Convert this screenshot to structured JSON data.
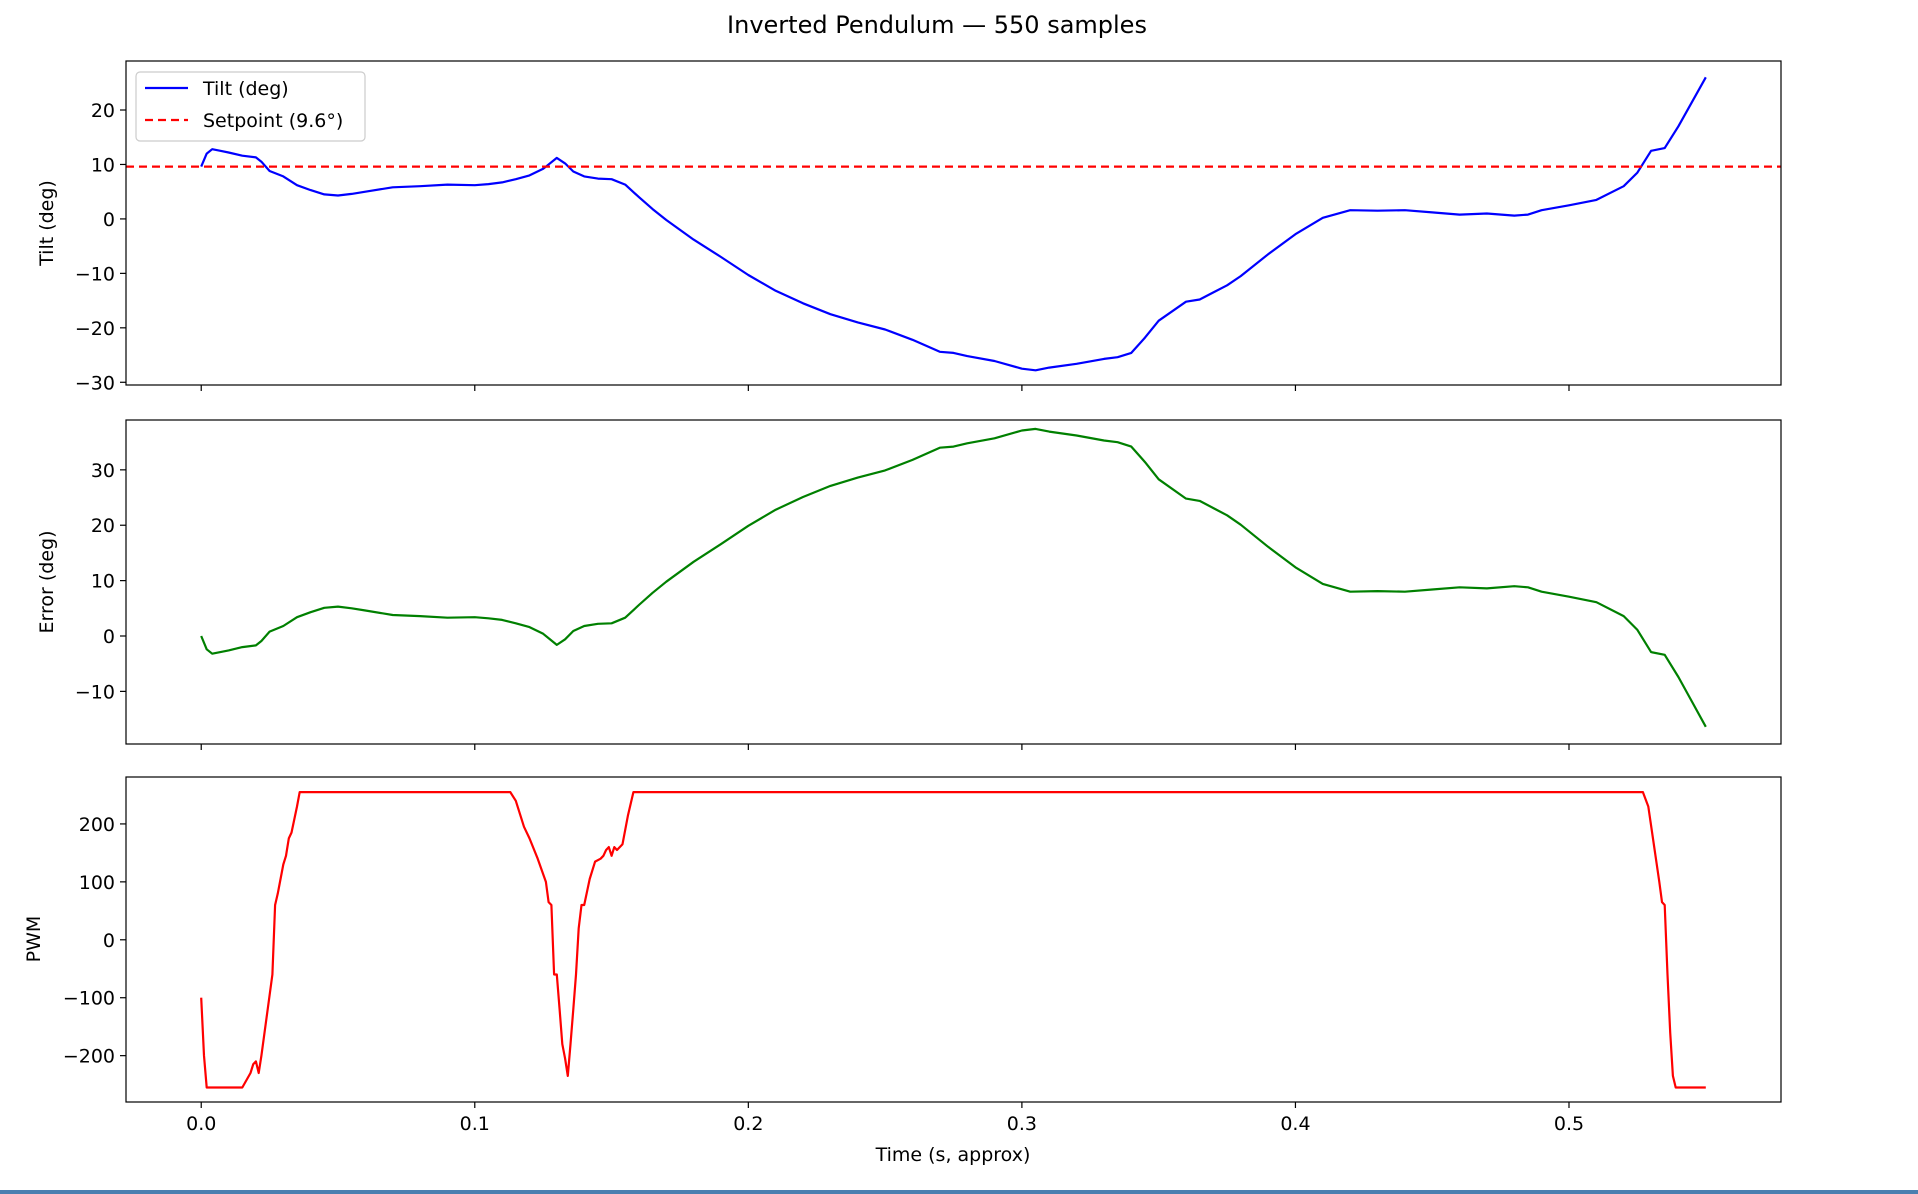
{
  "figure_title": "Inverted Pendulum — 550 samples",
  "chart_data": [
    {
      "type": "line",
      "ylabel": "Tilt (deg)",
      "xlabel": "",
      "xlim": [
        -0.0275,
        0.5775
      ],
      "ylim": [
        -30.5,
        29.0
      ],
      "xticks": [
        0.0,
        0.1,
        0.2,
        0.3,
        0.4,
        0.5
      ],
      "yticks": [
        -30,
        -20,
        -10,
        0,
        10,
        20
      ],
      "grid": false,
      "legend": "top-left",
      "series": [
        {
          "name": "Tilt (deg)",
          "color": "#0000ff",
          "style": "solid",
          "x": [
            0.0,
            0.002,
            0.004,
            0.007,
            0.01,
            0.015,
            0.02,
            0.022,
            0.025,
            0.03,
            0.035,
            0.04,
            0.045,
            0.05,
            0.055,
            0.06,
            0.07,
            0.08,
            0.09,
            0.1,
            0.105,
            0.11,
            0.115,
            0.12,
            0.125,
            0.13,
            0.133,
            0.136,
            0.14,
            0.145,
            0.15,
            0.155,
            0.16,
            0.165,
            0.17,
            0.18,
            0.19,
            0.2,
            0.21,
            0.22,
            0.23,
            0.24,
            0.25,
            0.26,
            0.27,
            0.275,
            0.28,
            0.29,
            0.3,
            0.305,
            0.31,
            0.32,
            0.33,
            0.335,
            0.34,
            0.345,
            0.35,
            0.36,
            0.365,
            0.37,
            0.375,
            0.38,
            0.39,
            0.4,
            0.41,
            0.42,
            0.43,
            0.44,
            0.45,
            0.46,
            0.47,
            0.48,
            0.485,
            0.49,
            0.5,
            0.51,
            0.52,
            0.525,
            0.53,
            0.535,
            0.54,
            0.545,
            0.55
          ],
          "y": [
            9.6,
            12.0,
            12.8,
            12.5,
            12.2,
            11.6,
            11.3,
            10.5,
            8.8,
            7.8,
            6.2,
            5.3,
            4.5,
            4.3,
            4.6,
            5.0,
            5.8,
            6.0,
            6.3,
            6.2,
            6.4,
            6.7,
            7.3,
            8.0,
            9.2,
            11.2,
            10.2,
            8.7,
            7.8,
            7.4,
            7.3,
            6.3,
            4.0,
            1.8,
            -0.2,
            -3.8,
            -7.0,
            -10.3,
            -13.2,
            -15.5,
            -17.5,
            -19.0,
            -20.3,
            -22.2,
            -24.4,
            -24.6,
            -25.2,
            -26.1,
            -27.5,
            -27.8,
            -27.3,
            -26.6,
            -25.7,
            -25.4,
            -24.6,
            -21.8,
            -18.7,
            -15.2,
            -14.8,
            -13.5,
            -12.2,
            -10.5,
            -6.5,
            -2.8,
            0.2,
            1.6,
            1.5,
            1.6,
            1.2,
            0.8,
            1.0,
            0.6,
            0.8,
            1.6,
            2.5,
            3.5,
            6.0,
            8.5,
            12.5,
            13.0,
            17.0,
            21.5,
            26.0
          ]
        },
        {
          "name": "Setpoint (9.6°)",
          "color": "#ff0000",
          "style": "dashed",
          "x": [
            -0.0275,
            0.5775
          ],
          "y": [
            9.6,
            9.6
          ]
        }
      ]
    },
    {
      "type": "line",
      "ylabel": "Error (deg)",
      "xlabel": "",
      "xlim": [
        -0.0275,
        0.5775
      ],
      "ylim": [
        -19.5,
        39.0
      ],
      "xticks": [
        0.0,
        0.1,
        0.2,
        0.3,
        0.4,
        0.5
      ],
      "yticks": [
        -10,
        0,
        10,
        20,
        30
      ],
      "grid": false,
      "series": [
        {
          "color": "#008000",
          "style": "solid",
          "x": [
            0.0,
            0.002,
            0.004,
            0.007,
            0.01,
            0.015,
            0.02,
            0.022,
            0.025,
            0.03,
            0.035,
            0.04,
            0.045,
            0.05,
            0.055,
            0.06,
            0.07,
            0.08,
            0.09,
            0.1,
            0.105,
            0.11,
            0.115,
            0.12,
            0.125,
            0.13,
            0.133,
            0.136,
            0.14,
            0.145,
            0.15,
            0.155,
            0.16,
            0.165,
            0.17,
            0.18,
            0.19,
            0.2,
            0.21,
            0.22,
            0.23,
            0.24,
            0.25,
            0.26,
            0.27,
            0.275,
            0.28,
            0.29,
            0.3,
            0.305,
            0.31,
            0.32,
            0.33,
            0.335,
            0.34,
            0.345,
            0.35,
            0.36,
            0.365,
            0.37,
            0.375,
            0.38,
            0.39,
            0.4,
            0.41,
            0.42,
            0.43,
            0.44,
            0.45,
            0.46,
            0.47,
            0.48,
            0.485,
            0.49,
            0.5,
            0.51,
            0.52,
            0.525,
            0.53,
            0.535,
            0.54,
            0.545,
            0.55
          ],
          "y": [
            0.0,
            -2.4,
            -3.2,
            -2.9,
            -2.6,
            -2.0,
            -1.7,
            -0.9,
            0.8,
            1.8,
            3.4,
            4.3,
            5.1,
            5.3,
            5.0,
            4.6,
            3.8,
            3.6,
            3.3,
            3.4,
            3.2,
            2.9,
            2.3,
            1.6,
            0.4,
            -1.6,
            -0.6,
            0.9,
            1.8,
            2.2,
            2.3,
            3.3,
            5.6,
            7.8,
            9.8,
            13.4,
            16.6,
            19.9,
            22.8,
            25.1,
            27.1,
            28.6,
            29.9,
            31.8,
            34.0,
            34.2,
            34.8,
            35.7,
            37.1,
            37.4,
            36.9,
            36.2,
            35.3,
            35.0,
            34.2,
            31.4,
            28.3,
            24.8,
            24.4,
            23.1,
            21.8,
            20.1,
            16.1,
            12.4,
            9.4,
            8.0,
            8.1,
            8.0,
            8.4,
            8.8,
            8.6,
            9.0,
            8.8,
            8.0,
            7.1,
            6.1,
            3.6,
            1.1,
            -2.9,
            -3.4,
            -7.4,
            -11.9,
            -16.4
          ]
        }
      ]
    },
    {
      "type": "line",
      "ylabel": "PWM",
      "xlabel": "Time (s, approx)",
      "xlim": [
        -0.0275,
        0.5775
      ],
      "ylim": [
        -280,
        281
      ],
      "xticks": [
        0.0,
        0.1,
        0.2,
        0.3,
        0.4,
        0.5
      ],
      "yticks": [
        -200,
        -100,
        0,
        100,
        200
      ],
      "grid": false,
      "series": [
        {
          "color": "#ff0000",
          "style": "solid",
          "x": [
            0.0,
            0.001,
            0.002,
            0.004,
            0.007,
            0.01,
            0.015,
            0.018,
            0.019,
            0.02,
            0.021,
            0.022,
            0.024,
            0.026,
            0.027,
            0.028,
            0.03,
            0.031,
            0.032,
            0.033,
            0.035,
            0.036,
            0.04,
            0.08,
            0.1,
            0.113,
            0.115,
            0.118,
            0.12,
            0.123,
            0.126,
            0.127,
            0.128,
            0.129,
            0.13,
            0.131,
            0.132,
            0.133,
            0.134,
            0.135,
            0.136,
            0.137,
            0.138,
            0.139,
            0.14,
            0.142,
            0.144,
            0.146,
            0.147,
            0.148,
            0.149,
            0.15,
            0.151,
            0.152,
            0.154,
            0.156,
            0.158,
            0.16,
            0.2,
            0.3,
            0.4,
            0.5,
            0.527,
            0.529,
            0.531,
            0.533,
            0.534,
            0.535,
            0.536,
            0.537,
            0.538,
            0.539,
            0.54,
            0.545,
            0.55
          ],
          "y": [
            -100,
            -200,
            -255,
            -255,
            -255,
            -255,
            -255,
            -230,
            -215,
            -210,
            -230,
            -200,
            -130,
            -60,
            60,
            80,
            130,
            145,
            175,
            185,
            230,
            255,
            255,
            255,
            255,
            255,
            240,
            195,
            175,
            140,
            100,
            65,
            60,
            -60,
            -60,
            -120,
            -180,
            -205,
            -235,
            -180,
            -120,
            -60,
            20,
            60,
            60,
            105,
            135,
            140,
            145,
            155,
            160,
            145,
            160,
            155,
            165,
            215,
            255,
            255,
            255,
            255,
            255,
            255,
            255,
            230,
            165,
            100,
            65,
            60,
            -60,
            -160,
            -235,
            -255,
            -255,
            -255,
            -255
          ]
        }
      ]
    }
  ]
}
